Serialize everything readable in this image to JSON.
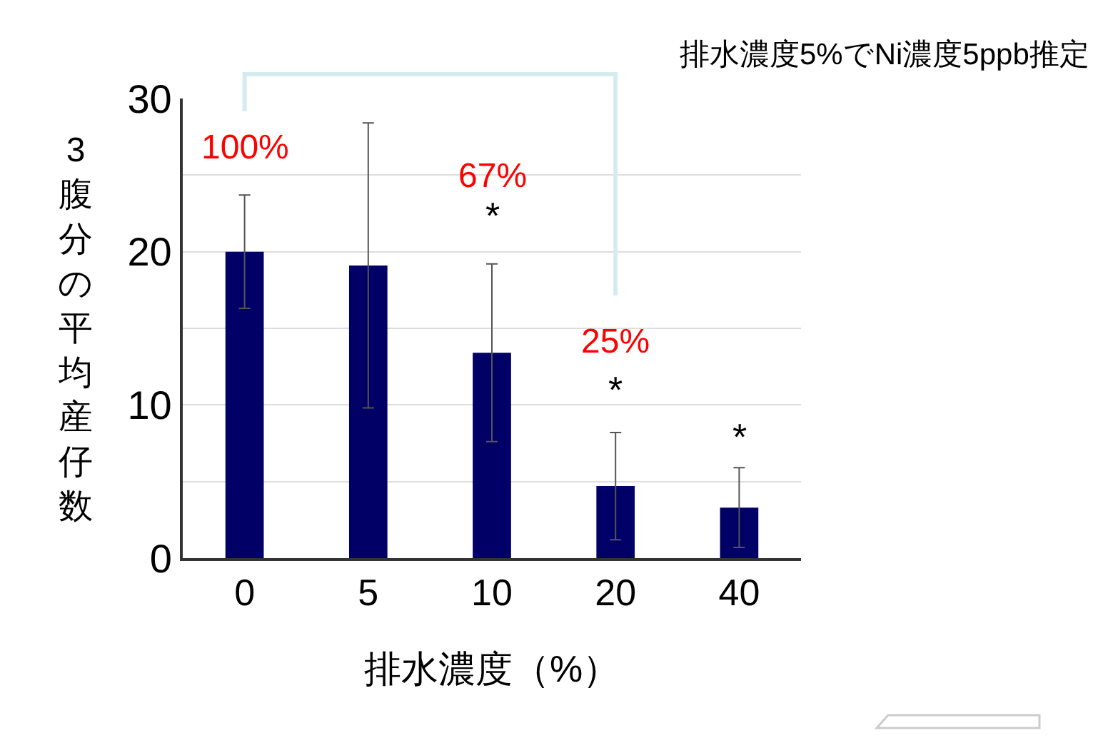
{
  "chart_data": {
    "type": "bar",
    "title": "排水濃度5%でNi濃度5ppb推定",
    "xlabel": "排水濃度（%）",
    "ylabel": "3腹分の平均産仔数",
    "categories": [
      "0",
      "5",
      "10",
      "20",
      "40"
    ],
    "series": [
      {
        "color": "#000066",
        "values": [
          20,
          19.1,
          13.4,
          4.7,
          3.3
        ],
        "errors": [
          3.7,
          9.3,
          5.8,
          3.5,
          2.6
        ]
      }
    ],
    "ylim": [
      0,
      30
    ],
    "yticks": [
      0,
      {
        "value": 5,
        "label": null
      },
      10,
      {
        "value": 15,
        "label": null
      },
      20,
      {
        "value": 25,
        "label": null
      },
      30
    ],
    "grid": "y",
    "annotations": [
      "100%",
      "67%",
      "25%",
      "*",
      "*",
      "*"
    ]
  }
}
